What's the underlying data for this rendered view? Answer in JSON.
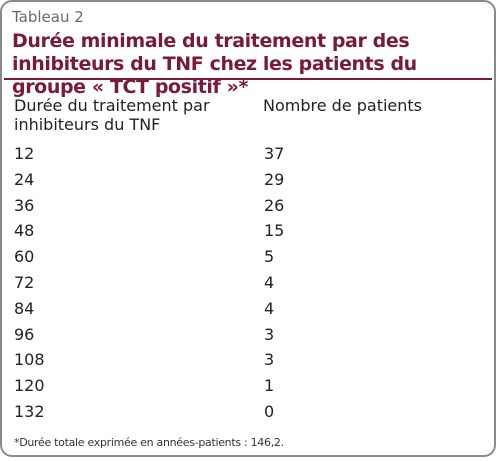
{
  "table": {
    "label": "Tableau 2",
    "title": "Durée minimale du traitement par des inhibiteurs du TNF chez les patients du groupe « TCT positif »*",
    "columns": [
      "Durée du traitement par inhibiteurs du TNF",
      "Nombre de patients"
    ],
    "rows": [
      [
        "12",
        "37"
      ],
      [
        "24",
        "29"
      ],
      [
        "36",
        "26"
      ],
      [
        "48",
        "15"
      ],
      [
        "60",
        "5"
      ],
      [
        "72",
        "4"
      ],
      [
        "84",
        "4"
      ],
      [
        "96",
        "3"
      ],
      [
        "108",
        "3"
      ],
      [
        "120",
        "1"
      ],
      [
        "132",
        "0"
      ]
    ],
    "footnote": "*Durée totale exprimée en années-patients : 146,2."
  },
  "colors": {
    "title": "#7a1a3a",
    "border": "#8a8a8a"
  }
}
